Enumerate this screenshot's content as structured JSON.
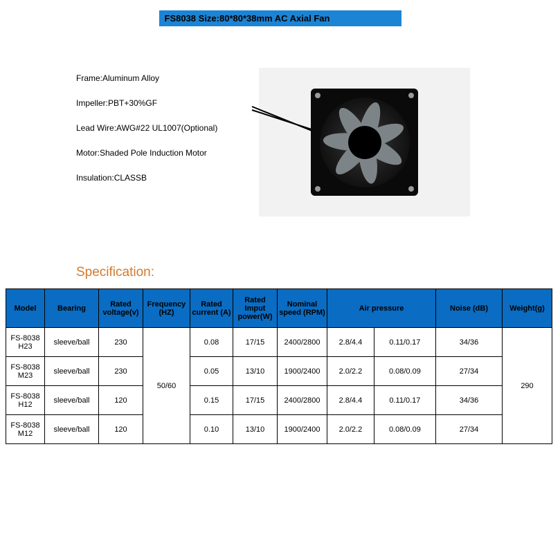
{
  "title_bar": {
    "text": "FS8038 Size:80*80*38mm    AC Axial Fan",
    "bg_color": "#1c84d4",
    "text_color": "#000000"
  },
  "properties": [
    "Frame:Aluminum Alloy",
    "Impeller:PBT+30%GF",
    "Lead Wire:AWG#22 UL1007(Optional)",
    "Motor:Shaded Pole Induction Motor",
    "Insulation:CLASSB"
  ],
  "fan_image": {
    "bg_color": "#f2f2f2",
    "body_color": "#0a0a0a",
    "blade_color": "#7d8488",
    "blade_count": 7
  },
  "spec_heading": {
    "text": "Specification:",
    "color": "#d47a2a"
  },
  "table": {
    "header_bg": "#0a6cc2",
    "header_text_color": "#000000",
    "columns": [
      {
        "label": "Model",
        "width": 56
      },
      {
        "label": "Bearing",
        "width": 78
      },
      {
        "label": "Rated voltage(v)",
        "width": 64
      },
      {
        "label": "Frequency (HZ)",
        "width": 68
      },
      {
        "label": "Rated current (A)",
        "width": 62
      },
      {
        "label": "Rated Imput power(W)",
        "width": 64
      },
      {
        "label": "Nominal speed (RPM)",
        "width": 72
      },
      {
        "label": "Air pressure",
        "width": 152,
        "colspan": 2
      },
      {
        "label": "Noise (dB)",
        "width": 96
      },
      {
        "label": "Weight(g)",
        "width": 72
      }
    ],
    "merged": {
      "frequency": "50/60",
      "weight": "290"
    },
    "rows": [
      {
        "model": "FS-8038 H23",
        "bearing": "sleeve/ball",
        "voltage": "230",
        "current": "0.08",
        "power": "17/15",
        "speed": "2400/2800",
        "ap1": "2.8/4.4",
        "ap2": "0.11/0.17",
        "noise": "34/36"
      },
      {
        "model": "FS-8038 M23",
        "bearing": "sleeve/ball",
        "voltage": "230",
        "current": "0.05",
        "power": "13/10",
        "speed": "1900/2400",
        "ap1": "2.0/2.2",
        "ap2": "0.08/0.09",
        "noise": "27/34"
      },
      {
        "model": "FS-8038 H12",
        "bearing": "sleeve/ball",
        "voltage": "120",
        "current": "0.15",
        "power": "17/15",
        "speed": "2400/2800",
        "ap1": "2.8/4.4",
        "ap2": "0.11/0.17",
        "noise": "34/36"
      },
      {
        "model": "FS-8038 M12",
        "bearing": "sleeve/ball",
        "voltage": "120",
        "current": "0.10",
        "power": "13/10",
        "speed": "1900/2400",
        "ap1": "2.0/2.2",
        "ap2": "0.08/0.09",
        "noise": "27/34"
      }
    ]
  }
}
